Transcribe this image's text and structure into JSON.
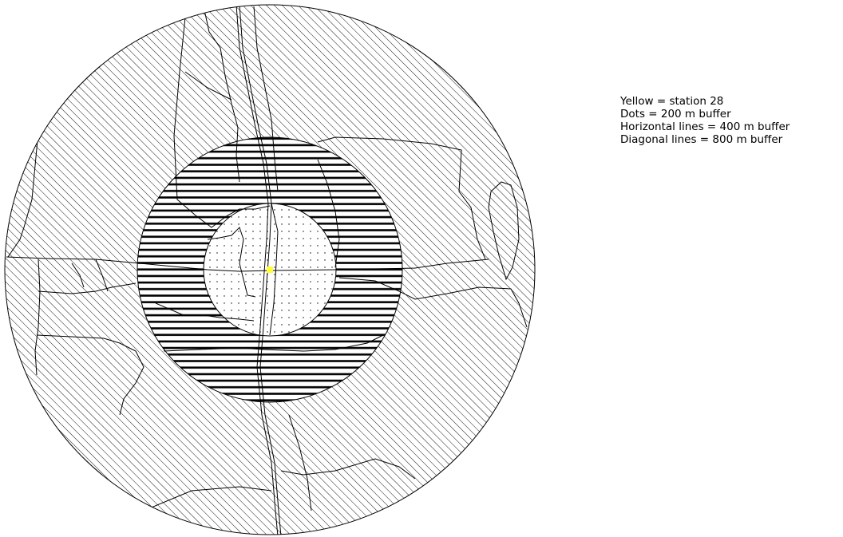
{
  "legend": {
    "items": [
      "Yellow = station 28",
      "Dots = 200 m buffer",
      "Horizontal lines = 400 m buffer",
      "Diagonal lines = 800 m buffer"
    ]
  },
  "colors": {
    "station": "#ffff33",
    "outline": "#000000",
    "background": "#ffffff"
  },
  "symbology": {
    "station": "yellow-square",
    "buffer_200m": "dot-pattern",
    "buffer_400m": "horizontal-line-pattern",
    "buffer_800m": "diagonal-line-pattern"
  }
}
